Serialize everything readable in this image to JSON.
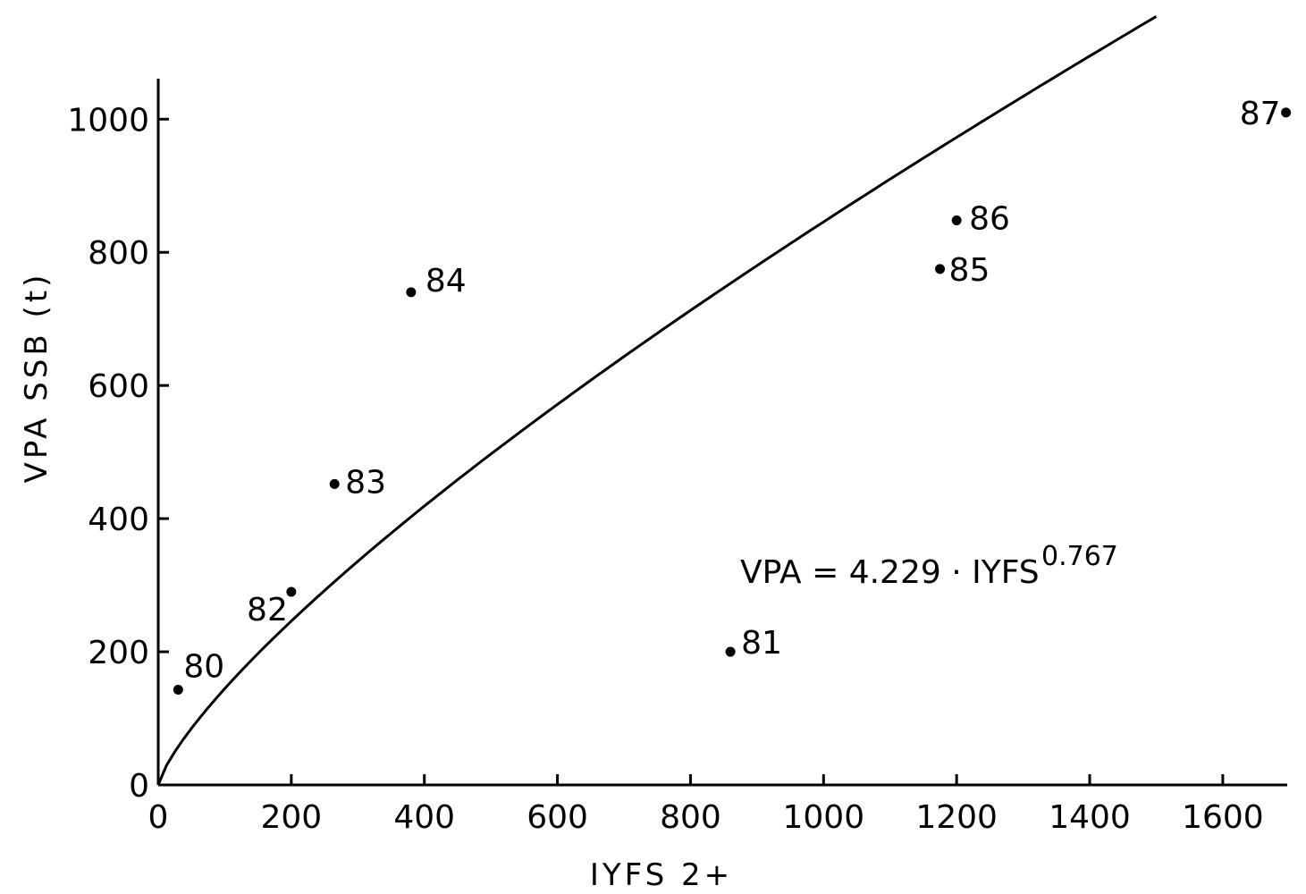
{
  "chart_data": {
    "type": "scatter",
    "xlabel": "IYFS 2+",
    "ylabel": "VPA SSB (t)",
    "xlim": [
      0,
      1700
    ],
    "ylim": [
      0,
      1050
    ],
    "xticks": [
      0,
      200,
      400,
      600,
      800,
      1000,
      1200,
      1400,
      1600
    ],
    "yticks": [
      0,
      200,
      400,
      600,
      800,
      1000
    ],
    "grid": false,
    "points": [
      {
        "label": "80",
        "x": 30,
        "y": 143
      },
      {
        "label": "81",
        "x": 860,
        "y": 200
      },
      {
        "label": "82",
        "x": 200,
        "y": 290
      },
      {
        "label": "83",
        "x": 265,
        "y": 452
      },
      {
        "label": "84",
        "x": 380,
        "y": 740
      },
      {
        "label": "85",
        "x": 1175,
        "y": 775
      },
      {
        "label": "86",
        "x": 1200,
        "y": 848
      },
      {
        "label": "87",
        "x": 1695,
        "y": 1010
      }
    ],
    "fit": {
      "a": 4.229,
      "b": 0.767,
      "x_range": [
        0,
        1500
      ]
    },
    "equation": {
      "text": "VPA = 4.229 · IYFS",
      "exponent": "0.767"
    }
  }
}
